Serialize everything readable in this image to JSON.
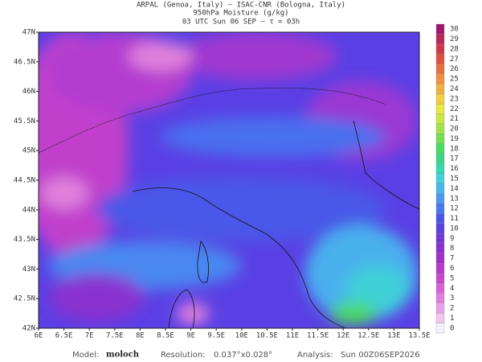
{
  "header": {
    "line1": "ARPAL (Genoa, Italy)  –  ISAC-CNR (Bologna, Italy)",
    "line2": "950hPa Moisture (g/kg)",
    "line3": "03 UTC Sun 06 SEP  –  τ = 03h"
  },
  "map": {
    "lon_labels": [
      "6E",
      "6.5E",
      "7E",
      "7.5E",
      "8E",
      "8.5E",
      "9E",
      "9.5E",
      "10E",
      "10.5E",
      "11E",
      "11.5E",
      "12E",
      "12.5E",
      "13E",
      "13.5E"
    ],
    "lat_labels": [
      "47N",
      "46.5N",
      "46N",
      "45.5N",
      "45N",
      "44.5N",
      "44N",
      "43.5N",
      "43N",
      "42.5N",
      "42N"
    ]
  },
  "colorbar": {
    "levels": [
      0,
      1,
      2,
      3,
      4,
      5,
      6,
      7,
      8,
      9,
      10,
      11,
      12,
      13,
      14,
      15,
      16,
      17,
      18,
      19,
      20,
      21,
      22,
      23,
      24,
      25,
      26,
      27,
      28,
      29,
      30
    ],
    "colors": [
      "#f4f0f8",
      "#f2c6ee",
      "#eaa0e6",
      "#e080dc",
      "#d860d4",
      "#c848cc",
      "#b838c8",
      "#a030c8",
      "#8a30d0",
      "#7438d8",
      "#5c40e0",
      "#4a58e8",
      "#4a78f0",
      "#4a98f0",
      "#48b8ee",
      "#40d0d8",
      "#38d8b0",
      "#38d888",
      "#48dc60",
      "#70e050",
      "#a0e448",
      "#c8e840",
      "#e8e840",
      "#f0d040",
      "#f0b040",
      "#f09040",
      "#e87040",
      "#e05040",
      "#d03848",
      "#b82858",
      "#a01870"
    ]
  },
  "footer": {
    "model_label": "Model:",
    "model": "moloch",
    "res_label": "Resolution:",
    "res": "0.037°x0.028°",
    "analysis_label": "Analysis:",
    "analysis": "Sun 00Z06SEP2026"
  }
}
